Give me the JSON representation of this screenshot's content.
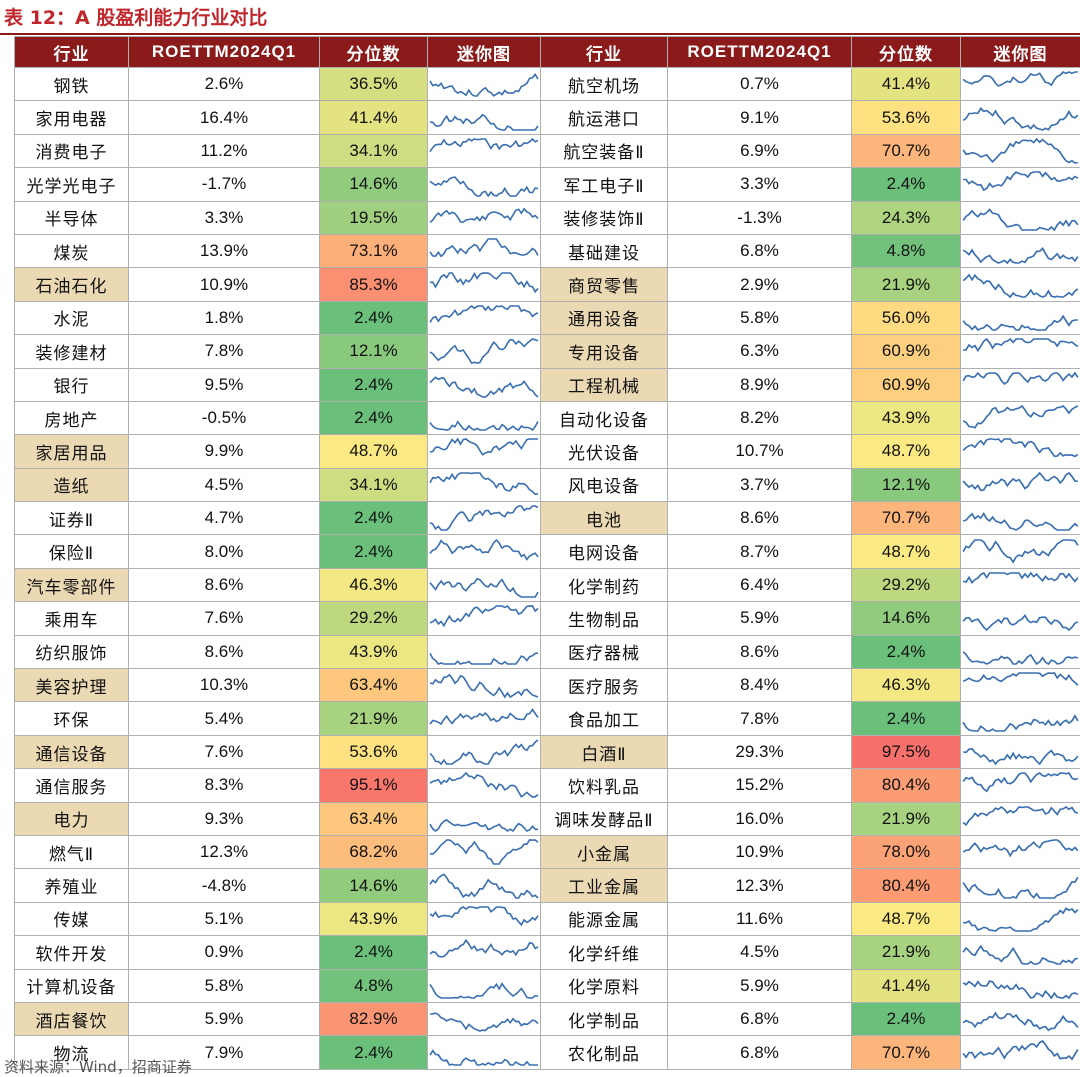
{
  "title": "表 12：A 股盈利能力行业对比",
  "source": "资料来源：Wind，招商证券",
  "headers": [
    "行业",
    "ROETTM2024Q1",
    "分位数",
    "迷你图",
    "行业",
    "ROETTM2024Q1",
    "分位数",
    "迷你图"
  ],
  "colors": {
    "header_bg": "#8b1a1a",
    "highlight": "#ead9b3",
    "spark_line": "#3a6fb0",
    "scale_low": "#63be7b",
    "scale_mid": "#ffeb84",
    "scale_high": "#f8696b"
  },
  "rows": [
    {
      "l": {
        "name": "钢铁",
        "roe": "2.6%",
        "pct": "36.5%",
        "p": 0.365,
        "hl": false
      },
      "r": {
        "name": "航空机场",
        "roe": "0.7%",
        "pct": "41.4%",
        "p": 0.414,
        "hl": false
      }
    },
    {
      "l": {
        "name": "家用电器",
        "roe": "16.4%",
        "pct": "41.4%",
        "p": 0.414,
        "hl": false
      },
      "r": {
        "name": "航运港口",
        "roe": "9.1%",
        "pct": "53.6%",
        "p": 0.536,
        "hl": false
      }
    },
    {
      "l": {
        "name": "消费电子",
        "roe": "11.2%",
        "pct": "34.1%",
        "p": 0.341,
        "hl": false
      },
      "r": {
        "name": "航空装备Ⅱ",
        "roe": "6.9%",
        "pct": "70.7%",
        "p": 0.707,
        "hl": false
      }
    },
    {
      "l": {
        "name": "光学光电子",
        "roe": "-1.7%",
        "pct": "14.6%",
        "p": 0.146,
        "hl": false
      },
      "r": {
        "name": "军工电子Ⅱ",
        "roe": "3.3%",
        "pct": "2.4%",
        "p": 0.024,
        "hl": false
      }
    },
    {
      "l": {
        "name": "半导体",
        "roe": "3.3%",
        "pct": "19.5%",
        "p": 0.195,
        "hl": false
      },
      "r": {
        "name": "装修装饰Ⅱ",
        "roe": "-1.3%",
        "pct": "24.3%",
        "p": 0.243,
        "hl": false
      }
    },
    {
      "l": {
        "name": "煤炭",
        "roe": "13.9%",
        "pct": "73.1%",
        "p": 0.731,
        "hl": false
      },
      "r": {
        "name": "基础建设",
        "roe": "6.8%",
        "pct": "4.8%",
        "p": 0.048,
        "hl": false
      }
    },
    {
      "l": {
        "name": "石油石化",
        "roe": "10.9%",
        "pct": "85.3%",
        "p": 0.853,
        "hl": true
      },
      "r": {
        "name": "商贸零售",
        "roe": "2.9%",
        "pct": "21.9%",
        "p": 0.219,
        "hl": true
      }
    },
    {
      "l": {
        "name": "水泥",
        "roe": "1.8%",
        "pct": "2.4%",
        "p": 0.024,
        "hl": false
      },
      "r": {
        "name": "通用设备",
        "roe": "5.8%",
        "pct": "56.0%",
        "p": 0.56,
        "hl": true
      }
    },
    {
      "l": {
        "name": "装修建材",
        "roe": "7.8%",
        "pct": "12.1%",
        "p": 0.121,
        "hl": false
      },
      "r": {
        "name": "专用设备",
        "roe": "6.3%",
        "pct": "60.9%",
        "p": 0.609,
        "hl": true
      }
    },
    {
      "l": {
        "name": "银行",
        "roe": "9.5%",
        "pct": "2.4%",
        "p": 0.024,
        "hl": false
      },
      "r": {
        "name": "工程机械",
        "roe": "8.9%",
        "pct": "60.9%",
        "p": 0.609,
        "hl": true
      }
    },
    {
      "l": {
        "name": "房地产",
        "roe": "-0.5%",
        "pct": "2.4%",
        "p": 0.024,
        "hl": false
      },
      "r": {
        "name": "自动化设备",
        "roe": "8.2%",
        "pct": "43.9%",
        "p": 0.439,
        "hl": false
      }
    },
    {
      "l": {
        "name": "家居用品",
        "roe": "9.9%",
        "pct": "48.7%",
        "p": 0.487,
        "hl": true
      },
      "r": {
        "name": "光伏设备",
        "roe": "10.7%",
        "pct": "48.7%",
        "p": 0.487,
        "hl": false
      }
    },
    {
      "l": {
        "name": "造纸",
        "roe": "4.5%",
        "pct": "34.1%",
        "p": 0.341,
        "hl": true
      },
      "r": {
        "name": "风电设备",
        "roe": "3.7%",
        "pct": "12.1%",
        "p": 0.121,
        "hl": false
      }
    },
    {
      "l": {
        "name": "证券Ⅱ",
        "roe": "4.7%",
        "pct": "2.4%",
        "p": 0.024,
        "hl": false
      },
      "r": {
        "name": "电池",
        "roe": "8.6%",
        "pct": "70.7%",
        "p": 0.707,
        "hl": true
      }
    },
    {
      "l": {
        "name": "保险Ⅱ",
        "roe": "8.0%",
        "pct": "2.4%",
        "p": 0.024,
        "hl": false
      },
      "r": {
        "name": "电网设备",
        "roe": "8.7%",
        "pct": "48.7%",
        "p": 0.487,
        "hl": false
      }
    },
    {
      "l": {
        "name": "汽车零部件",
        "roe": "8.6%",
        "pct": "46.3%",
        "p": 0.463,
        "hl": true
      },
      "r": {
        "name": "化学制药",
        "roe": "6.4%",
        "pct": "29.2%",
        "p": 0.292,
        "hl": false
      }
    },
    {
      "l": {
        "name": "乘用车",
        "roe": "7.6%",
        "pct": "29.2%",
        "p": 0.292,
        "hl": false
      },
      "r": {
        "name": "生物制品",
        "roe": "5.9%",
        "pct": "14.6%",
        "p": 0.146,
        "hl": false
      }
    },
    {
      "l": {
        "name": "纺织服饰",
        "roe": "8.6%",
        "pct": "43.9%",
        "p": 0.439,
        "hl": false
      },
      "r": {
        "name": "医疗器械",
        "roe": "8.6%",
        "pct": "2.4%",
        "p": 0.024,
        "hl": false
      }
    },
    {
      "l": {
        "name": "美容护理",
        "roe": "10.3%",
        "pct": "63.4%",
        "p": 0.634,
        "hl": true
      },
      "r": {
        "name": "医疗服务",
        "roe": "8.4%",
        "pct": "46.3%",
        "p": 0.463,
        "hl": false
      }
    },
    {
      "l": {
        "name": "环保",
        "roe": "5.4%",
        "pct": "21.9%",
        "p": 0.219,
        "hl": false
      },
      "r": {
        "name": "食品加工",
        "roe": "7.8%",
        "pct": "2.4%",
        "p": 0.024,
        "hl": false
      }
    },
    {
      "l": {
        "name": "通信设备",
        "roe": "7.6%",
        "pct": "53.6%",
        "p": 0.536,
        "hl": true
      },
      "r": {
        "name": "白酒Ⅱ",
        "roe": "29.3%",
        "pct": "97.5%",
        "p": 0.975,
        "hl": true
      }
    },
    {
      "l": {
        "name": "通信服务",
        "roe": "8.3%",
        "pct": "95.1%",
        "p": 0.951,
        "hl": false
      },
      "r": {
        "name": "饮料乳品",
        "roe": "15.2%",
        "pct": "80.4%",
        "p": 0.804,
        "hl": false
      }
    },
    {
      "l": {
        "name": "电力",
        "roe": "9.3%",
        "pct": "63.4%",
        "p": 0.634,
        "hl": true
      },
      "r": {
        "name": "调味发酵品Ⅱ",
        "roe": "16.0%",
        "pct": "21.9%",
        "p": 0.219,
        "hl": false
      }
    },
    {
      "l": {
        "name": "燃气Ⅱ",
        "roe": "12.3%",
        "pct": "68.2%",
        "p": 0.682,
        "hl": false
      },
      "r": {
        "name": "小金属",
        "roe": "10.9%",
        "pct": "78.0%",
        "p": 0.78,
        "hl": true
      }
    },
    {
      "l": {
        "name": "养殖业",
        "roe": "-4.8%",
        "pct": "14.6%",
        "p": 0.146,
        "hl": false
      },
      "r": {
        "name": "工业金属",
        "roe": "12.3%",
        "pct": "80.4%",
        "p": 0.804,
        "hl": true
      }
    },
    {
      "l": {
        "name": "传媒",
        "roe": "5.1%",
        "pct": "43.9%",
        "p": 0.439,
        "hl": false
      },
      "r": {
        "name": "能源金属",
        "roe": "11.6%",
        "pct": "48.7%",
        "p": 0.487,
        "hl": false
      }
    },
    {
      "l": {
        "name": "软件开发",
        "roe": "0.9%",
        "pct": "2.4%",
        "p": 0.024,
        "hl": false
      },
      "r": {
        "name": "化学纤维",
        "roe": "4.5%",
        "pct": "21.9%",
        "p": 0.219,
        "hl": false
      }
    },
    {
      "l": {
        "name": "计算机设备",
        "roe": "5.8%",
        "pct": "4.8%",
        "p": 0.048,
        "hl": false
      },
      "r": {
        "name": "化学原料",
        "roe": "5.9%",
        "pct": "41.4%",
        "p": 0.414,
        "hl": false
      }
    },
    {
      "l": {
        "name": "酒店餐饮",
        "roe": "5.9%",
        "pct": "82.9%",
        "p": 0.829,
        "hl": true
      },
      "r": {
        "name": "化学制品",
        "roe": "6.8%",
        "pct": "2.4%",
        "p": 0.024,
        "hl": false
      }
    },
    {
      "l": {
        "name": "物流",
        "roe": "7.9%",
        "pct": "2.4%",
        "p": 0.024,
        "hl": false
      },
      "r": {
        "name": "农化制品",
        "roe": "6.8%",
        "pct": "70.7%",
        "p": 0.707,
        "hl": false
      }
    }
  ]
}
